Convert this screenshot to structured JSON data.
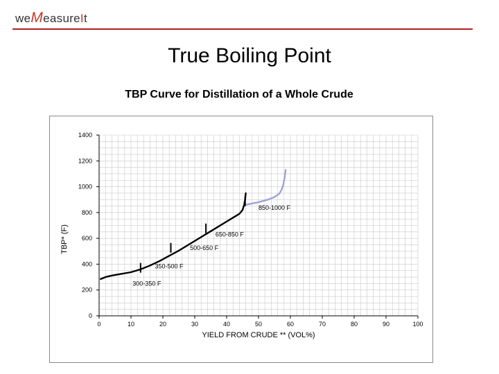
{
  "logo": {
    "pre": "we",
    "m": "M",
    "mid": "easure",
    "i": "I",
    "t": "t"
  },
  "slide": {
    "title": "True Boiling Point"
  },
  "chart_data": {
    "type": "line",
    "title": "TBP Curve for Distillation of a Whole Crude",
    "xlabel": "YIELD FROM CRUDE ** (VOL%)",
    "ylabel": "TBP* (F)",
    "xlim": [
      0,
      100
    ],
    "ylim": [
      0,
      1400
    ],
    "xticks": [
      0,
      10,
      20,
      30,
      40,
      50,
      60,
      70,
      80,
      90,
      100
    ],
    "yticks": [
      0,
      200,
      400,
      600,
      800,
      1000,
      1200,
      1400
    ],
    "grid": true,
    "series": [
      {
        "color": "#000000",
        "x": [
          0.5,
          2,
          4,
          7,
          10,
          13,
          16,
          19,
          22,
          25,
          28,
          31,
          34,
          37,
          40,
          42,
          44,
          45,
          45.5,
          45.8,
          46
        ],
        "y": [
          285,
          300,
          312,
          325,
          338,
          360,
          390,
          425,
          465,
          505,
          550,
          595,
          640,
          685,
          730,
          760,
          790,
          820,
          860,
          900,
          950
        ]
      },
      {
        "color": "#a0a0d8",
        "x": [
          46,
          50,
          53,
          55,
          56.5,
          57.3,
          57.8,
          58.2,
          58.5
        ],
        "y": [
          860,
          880,
          900,
          920,
          945,
          980,
          1020,
          1070,
          1130
        ]
      }
    ],
    "cut_markers": [
      {
        "x": 13,
        "y": 345
      },
      {
        "x": 22.5,
        "y": 500
      },
      {
        "x": 33.5,
        "y": 650
      },
      {
        "x": 45.8,
        "y": 860
      }
    ],
    "annotations": [
      {
        "text": "300-350 F",
        "x": 10.5,
        "y": 233
      },
      {
        "text": "350-500 F",
        "x": 17.5,
        "y": 368
      },
      {
        "text": "500-650 F",
        "x": 28.5,
        "y": 510
      },
      {
        "text": "650-850 F",
        "x": 36.5,
        "y": 613
      },
      {
        "text": "850-1000 F",
        "x": 50,
        "y": 822
      }
    ]
  }
}
